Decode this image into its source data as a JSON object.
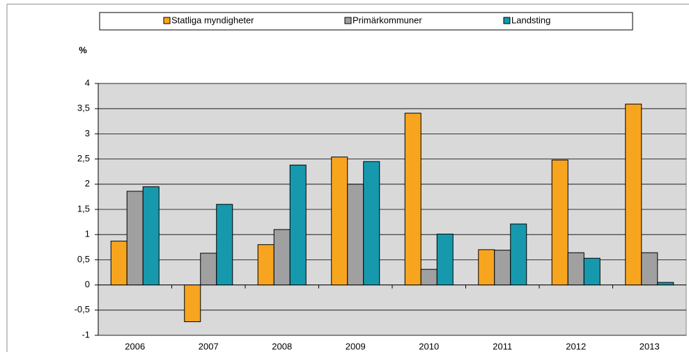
{
  "chart_data": {
    "type": "bar",
    "ylabel": "%",
    "categories": [
      "2006",
      "2007",
      "2008",
      "2009",
      "2010",
      "2011",
      "2012",
      "2013"
    ],
    "series": [
      {
        "name": "Statliga myndigheter",
        "color": "#f7a51f",
        "values": [
          0.87,
          -0.73,
          0.8,
          2.54,
          3.41,
          0.7,
          2.48,
          3.59
        ]
      },
      {
        "name": "Primärkommuner",
        "color": "#a0a0a0",
        "values": [
          1.86,
          0.63,
          1.1,
          2.0,
          0.31,
          0.69,
          0.64,
          0.64
        ]
      },
      {
        "name": "Landsting",
        "color": "#1799ad",
        "values": [
          1.95,
          1.6,
          2.38,
          2.45,
          1.01,
          1.21,
          0.53,
          0.05
        ]
      }
    ],
    "ylim": [
      -1,
      4
    ],
    "yticks": [
      {
        "value": -1,
        "label": "-1"
      },
      {
        "value": -0.5,
        "label": "-0,5"
      },
      0,
      {
        "value": 0.5,
        "label": "0,5"
      },
      1,
      {
        "value": 1.5,
        "label": "1,5"
      },
      2,
      {
        "value": 2.5,
        "label": "2,5"
      },
      3,
      {
        "value": 3.5,
        "label": "3,5"
      },
      4
    ],
    "grid": true,
    "legend": "top"
  }
}
